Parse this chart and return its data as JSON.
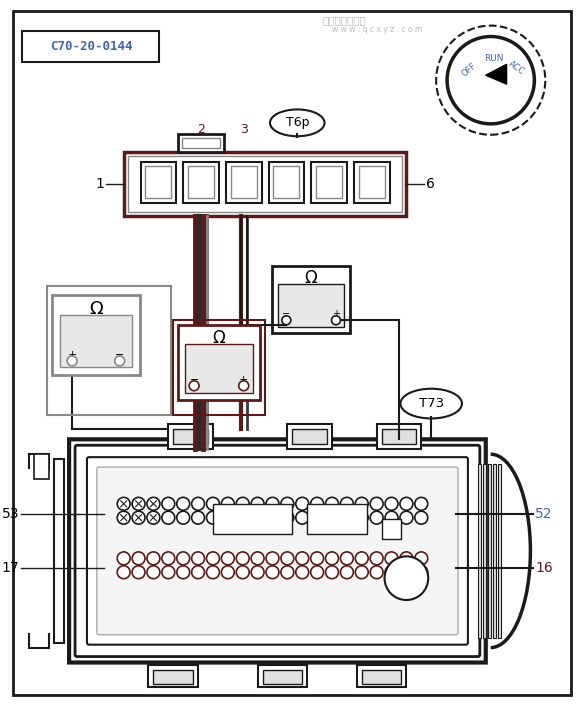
{
  "bg_color": "#ffffff",
  "border_color": "#1a1a1a",
  "dark_red": "#5c1a1a",
  "gray": "#888888",
  "blue": "#4466aa",
  "label_1": "1",
  "label_2": "2",
  "label_3": "3",
  "label_6": "6",
  "label_17": "17",
  "label_52": "52",
  "label_53": "53",
  "label_16": "16",
  "label_T6p": "T6p",
  "label_T73": "T73",
  "label_code": "C70-20-0144"
}
